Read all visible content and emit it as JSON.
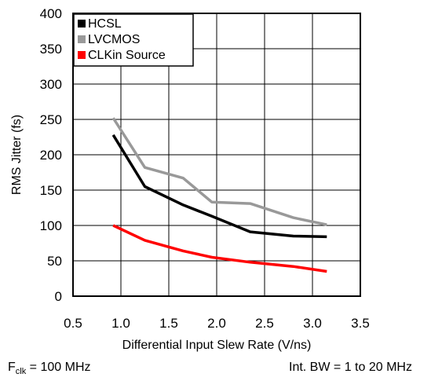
{
  "chart_data": {
    "type": "line",
    "xlabel": "Differential Input Slew Rate (V/ns)",
    "ylabel": "RMS Jitter (fs)",
    "xlim": [
      0.5,
      3.5
    ],
    "ylim": [
      0,
      400
    ],
    "xticks": [
      "0.5",
      "1.0",
      "1.5",
      "2.0",
      "2.5",
      "3.0",
      "3.5"
    ],
    "yticks": [
      "0",
      "50",
      "100",
      "150",
      "200",
      "250",
      "300",
      "350",
      "400"
    ],
    "grid": true,
    "legend_position": "top-left",
    "series": [
      {
        "name": "HCSL",
        "color": "#000000",
        "x": [
          0.92,
          1.25,
          1.65,
          1.95,
          2.35,
          2.8,
          3.15
        ],
        "y": [
          228,
          155,
          129,
          113,
          91,
          85,
          84
        ]
      },
      {
        "name": "LVCMOS",
        "color": "#999999",
        "x": [
          0.92,
          1.25,
          1.65,
          1.95,
          2.35,
          2.8,
          3.15
        ],
        "y": [
          252,
          182,
          167,
          133,
          131,
          111,
          101
        ]
      },
      {
        "name": "CLKin Source",
        "color": "#ff0000",
        "x": [
          0.92,
          1.25,
          1.65,
          1.95,
          2.35,
          2.8,
          3.15
        ],
        "y": [
          100,
          79,
          64,
          55,
          48,
          42,
          35
        ]
      }
    ]
  },
  "footer": {
    "fclk_symbol": "F",
    "fclk_subscript": "clk",
    "fclk_value": " = 100 MHz",
    "bandwidth": "Int. BW = 1 to 20 MHz"
  }
}
